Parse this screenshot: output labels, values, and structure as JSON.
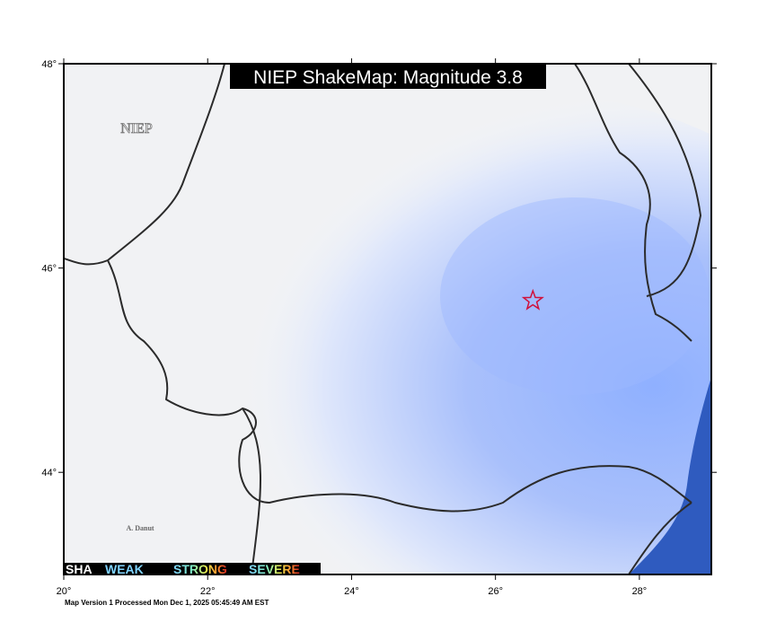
{
  "map": {
    "title": "NIEP ShakeMap: Magnitude 3.8",
    "watermark": "NIEP",
    "credit": "A. Danut",
    "footer": "Map Version 1 Processed Mon Dec  1, 2025 05:45:49 AM EST",
    "xlim": [
      20,
      29
    ],
    "ylim": [
      43,
      48
    ],
    "xticks": [
      {
        "value": 20,
        "label": "20°"
      },
      {
        "value": 22,
        "label": "22°"
      },
      {
        "value": 24,
        "label": "24°"
      },
      {
        "value": 26,
        "label": "26°"
      },
      {
        "value": 28,
        "label": "28°"
      }
    ],
    "yticks": [
      {
        "value": 44,
        "label": "44°"
      },
      {
        "value": 46,
        "label": "46°"
      },
      {
        "value": 48,
        "label": "48°"
      }
    ],
    "epicenter": {
      "lon": 26.52,
      "lat": 45.68
    },
    "legend": [
      "SHA",
      "WEAK",
      "STRONG",
      "SEVERE"
    ]
  }
}
